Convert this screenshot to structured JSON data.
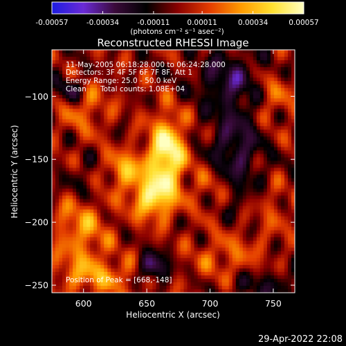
{
  "chart_data": {
    "type": "heatmap",
    "title": "Reconstructed RHESSI Image",
    "xlabel": "Heliocentric X (arcsec)",
    "ylabel": "Heliocentric Y (arcsec)",
    "xlim": [
      575,
      767
    ],
    "ylim": [
      -256,
      -63
    ],
    "x_ticks": [
      600,
      650,
      700,
      750
    ],
    "y_ticks": [
      -100,
      -150,
      -200,
      -250
    ],
    "colorbar": {
      "range": [
        -0.00057,
        0.00057
      ],
      "tick_values": [
        -0.00057,
        -0.00034,
        -0.00011,
        0.00011,
        0.00034,
        0.00057
      ],
      "tick_labels": [
        "-0.00057",
        "-0.00034",
        "-0.00011",
        "0.00011",
        "0.00034",
        "0.00057"
      ],
      "units": "(photons cm⁻² s⁻¹ asec⁻²)",
      "colors": [
        "#1c1ce0",
        "#6a2ad6",
        "#3a0a3a",
        "#000000",
        "#8a0000",
        "#e33c00",
        "#ff9a00",
        "#ffe030",
        "#ffffc0"
      ]
    },
    "annotations": {
      "time": "11-May-2005 06:18:28.000 to 06:24:28.000",
      "detectors": "Detectors: 3F 4F 5F 6F 7F 8F, Att 1",
      "energy": "Energy Range: 25.0 - 50.0 keV",
      "clean": "Clean",
      "counts": "Total counts: 1.08E+04",
      "peak": "Position of Peak = [668,-148]"
    },
    "peak": {
      "x": 668,
      "y": -148
    },
    "sources": [
      {
        "x": 666,
        "y": -145,
        "sigma_x": 10,
        "sigma_y": 20,
        "amp": 0.00057
      },
      {
        "x": 655,
        "y": -180,
        "sigma_x": 12,
        "sigma_y": 12,
        "amp": 0.00045
      },
      {
        "x": 633,
        "y": -158,
        "sigma_x": 11,
        "sigma_y": 10,
        "amp": 0.00032
      },
      {
        "x": 598,
        "y": -205,
        "sigma_x": 15,
        "sigma_y": 25,
        "amp": 0.00026
      },
      {
        "x": 615,
        "y": -243,
        "sigma_x": 25,
        "sigma_y": 10,
        "amp": 0.00022
      },
      {
        "x": 600,
        "y": -108,
        "sigma_x": 14,
        "sigma_y": 14,
        "amp": 0.0002
      },
      {
        "x": 715,
        "y": -228,
        "sigma_x": 20,
        "sigma_y": 14,
        "amp": 0.00018
      },
      {
        "x": 700,
        "y": -172,
        "sigma_x": 10,
        "sigma_y": 12,
        "amp": 0.00016
      },
      {
        "x": 750,
        "y": -100,
        "sigma_x": 12,
        "sigma_y": 14,
        "amp": 0.00018
      },
      {
        "x": 750,
        "y": -190,
        "sigma_x": 10,
        "sigma_y": 15,
        "amp": 0.00012
      },
      {
        "x": 720,
        "y": -140,
        "sigma_x": 15,
        "sigma_y": 30,
        "amp": -0.00025
      },
      {
        "x": 715,
        "y": -85,
        "sigma_x": 20,
        "sigma_y": 15,
        "amp": -0.00022
      },
      {
        "x": 600,
        "y": -170,
        "sigma_x": 12,
        "sigma_y": 12,
        "amp": -0.00018
      },
      {
        "x": 740,
        "y": -250,
        "sigma_x": 20,
        "sigma_y": 10,
        "amp": -0.00018
      },
      {
        "x": 655,
        "y": -236,
        "sigma_x": 8,
        "sigma_y": 8,
        "amp": -0.0004
      },
      {
        "x": 590,
        "y": -95,
        "sigma_x": 8,
        "sigma_y": 8,
        "amp": -0.00028
      }
    ]
  },
  "footer": {
    "timestamp": "29-Apr-2022 22:08"
  }
}
